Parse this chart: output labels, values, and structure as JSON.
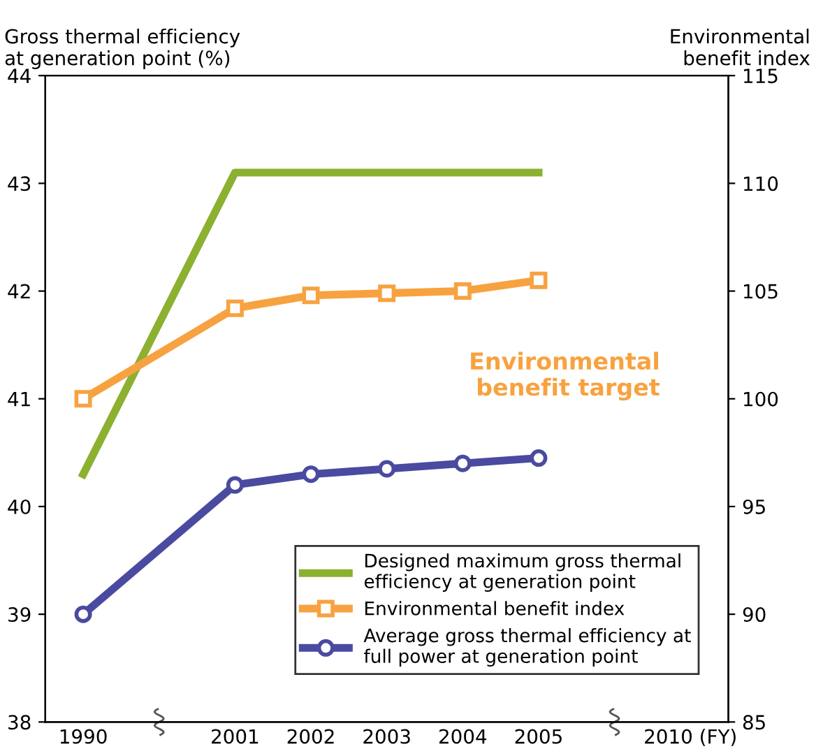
{
  "chart_data": {
    "type": "line",
    "ylabel": "Gross thermal efficiency\nat generation point (%)",
    "y2label": "Environmental\nbenefit index",
    "categories": [
      "1990",
      null,
      "2001",
      "2002",
      "2003",
      "2004",
      "2005",
      null,
      "2010 (FY)"
    ],
    "series": [
      {
        "name": "Designed maximum gross thermal efficiency at generation point",
        "color": "#8cb030",
        "marker": "none",
        "values": [
          40.3,
          null,
          43.1,
          43.1,
          43.1,
          43.1,
          43.1,
          null,
          null
        ]
      },
      {
        "name": "Environmental benefit index",
        "color": "#f7a240",
        "marker": "square",
        "axis": "y2",
        "values": [
          100,
          null,
          104.2,
          104.8,
          104.9,
          105.0,
          105.5,
          null,
          null
        ]
      },
      {
        "name": "Average gross thermal efficiency at full power at generation point",
        "color": "#4a4aa0",
        "marker": "circle",
        "values": [
          39.0,
          null,
          40.2,
          40.3,
          40.35,
          40.4,
          40.45,
          null,
          null
        ]
      }
    ],
    "ylim": [
      38,
      44
    ],
    "yticks": [
      38,
      39,
      40,
      41,
      42,
      43,
      44
    ],
    "y2lim": [
      85,
      115
    ],
    "y2ticks": [
      85,
      90,
      95,
      100,
      105,
      110,
      115
    ],
    "annotations": [
      "Environmental\nbenefit target"
    ],
    "legend": "bottom right",
    "grid": false
  }
}
